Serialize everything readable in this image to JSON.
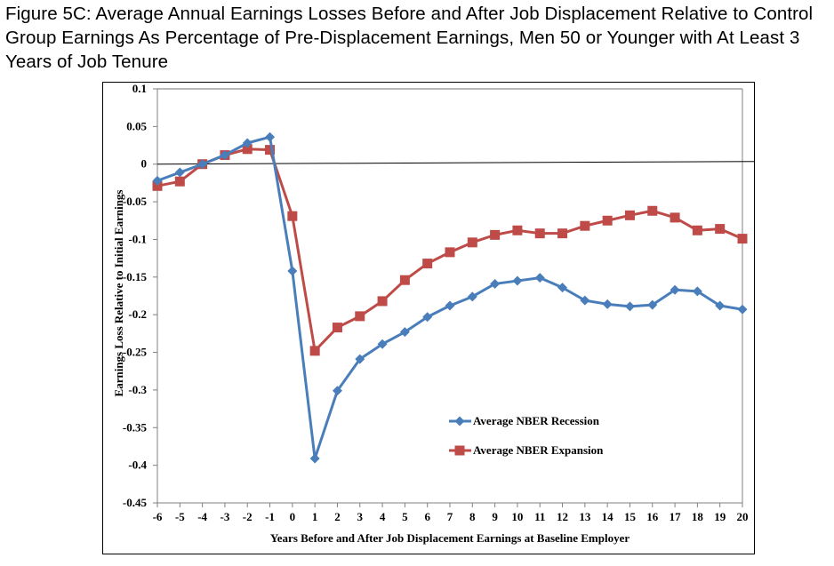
{
  "title": "Figure 5C: Average Annual Earnings Losses Before and After Job Displacement Relative to Control Group Earnings As Percentage of Pre-Displacement Earnings, Men 50 or Younger with At Least 3 Years of Job Tenure",
  "chart_data": {
    "type": "line",
    "title": "Figure 5C: Average Annual Earnings Losses Before and After Job Displacement Relative to Control Group Earnings As Percentage of Pre-Displacement Earnings, Men 50 or Younger with At Least 3 Years of Job Tenure",
    "xlabel": "Years Before and After Job Displacement Earnings at Baseline Employer",
    "ylabel": "Earnings Loss Relative to Initial Earnings",
    "categories": [
      "-6",
      "-5",
      "-4",
      "-3",
      "-2",
      "-1",
      "0",
      "1",
      "2",
      "3",
      "4",
      "5",
      "6",
      "7",
      "8",
      "9",
      "10",
      "11",
      "12",
      "13",
      "14",
      "15",
      "16",
      "17",
      "18",
      "19",
      "20"
    ],
    "ylim": [
      -0.45,
      0.1
    ],
    "yticks": [
      "0.1",
      "0.05",
      "0",
      "-0.05",
      "-0.1",
      "-0.15",
      "-0.2",
      "-0.25",
      "-0.3",
      "-0.35",
      "-0.4",
      "-0.45"
    ],
    "grid": "top line only, zero reference line",
    "legend_position": "lower-right inside plot",
    "series": [
      {
        "name": "Average NBER Recession",
        "color": "#4a7ebb",
        "marker": "diamond",
        "values": [
          -0.022,
          -0.011,
          0,
          0.012,
          0.028,
          0.036,
          -0.142,
          -0.391,
          -0.301,
          -0.259,
          -0.239,
          -0.223,
          -0.203,
          -0.188,
          -0.176,
          -0.159,
          -0.155,
          -0.151,
          -0.164,
          -0.181,
          -0.186,
          -0.189,
          -0.187,
          -0.167,
          -0.169,
          -0.188,
          -0.193
        ]
      },
      {
        "name": "Average NBER Expansion",
        "color": "#be4b48",
        "marker": "square",
        "values": [
          -0.029,
          -0.023,
          0,
          0.012,
          0.02,
          0.019,
          -0.069,
          -0.248,
          -0.217,
          -0.202,
          -0.182,
          -0.154,
          -0.132,
          -0.117,
          -0.104,
          -0.094,
          -0.088,
          -0.092,
          -0.092,
          -0.082,
          -0.075,
          -0.068,
          -0.062,
          -0.071,
          -0.088,
          -0.086,
          -0.099
        ]
      }
    ]
  }
}
